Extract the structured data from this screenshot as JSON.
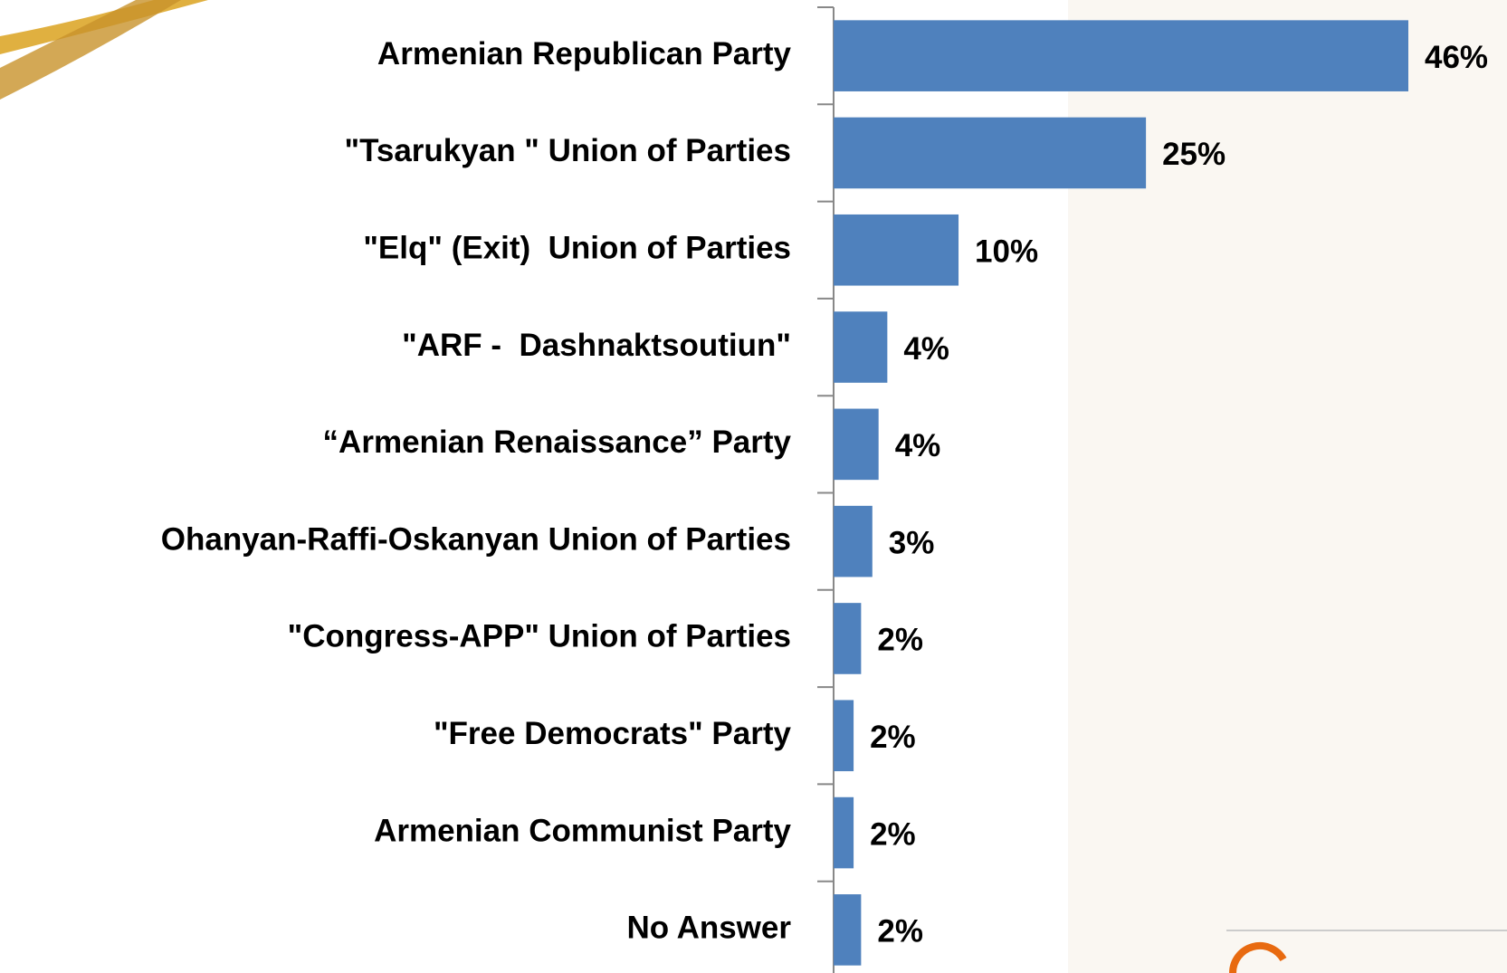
{
  "chart_data": {
    "type": "bar",
    "orientation": "horizontal",
    "color": "#4f81bd",
    "categories": [
      "Armenian Republican Party",
      "\"Tsarukyan \" Union of Parties",
      "\"Elq\" (Exit)  Union of Parties",
      "\"ARF -  Dashnaktsoutiun\"",
      "“Armenian Renaissance” Party",
      "Ohanyan-Raffi-Oskanyan Union of Parties",
      "\"Congress-APP\" Union of Parties",
      "\"Free Democrats\" Party",
      "Armenian Communist Party",
      "No Answer"
    ],
    "values": [
      46,
      25,
      10,
      4.3,
      3.6,
      3.1,
      2.2,
      1.6,
      1.6,
      2.2
    ],
    "value_labels": [
      "46%",
      "25%",
      "10%",
      "4%",
      "4%",
      "3%",
      "2%",
      "2%",
      "2%",
      "2%"
    ]
  }
}
